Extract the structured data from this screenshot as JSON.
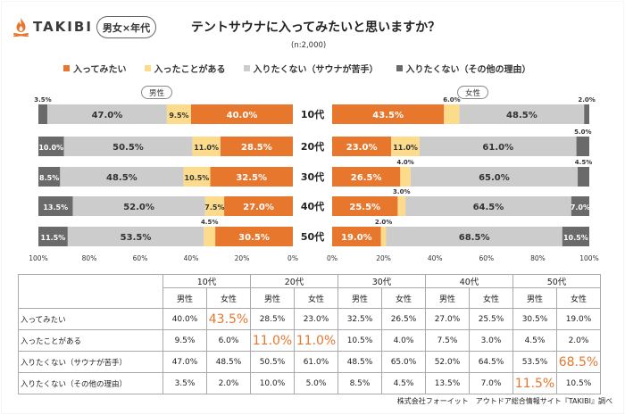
{
  "header": {
    "logo_text": "TAKIBI",
    "tag": "男女×年代",
    "title": "テントサウナに入ってみたいと思いますか？",
    "n_note": "(n:2,000)"
  },
  "colors": {
    "want": "#e8772e",
    "have": "#fcdc8c",
    "no_dislike": "#cccccc",
    "no_other": "#6a6a6a",
    "highlight": "#e8772e",
    "logo_flame": "#e8772e"
  },
  "chart_data": {
    "type": "bar",
    "orientation": "horizontal",
    "stacked": true,
    "legend": [
      "入ってみたい",
      "入ったことがある",
      "入りたくない（サウナが苦手）",
      "入りたくない（その他の理由）"
    ],
    "legend_position": "top",
    "categories": [
      "10代",
      "20代",
      "30代",
      "40代",
      "50代"
    ],
    "panels": [
      {
        "name": "男性",
        "direction": "right-to-left",
        "xlim": [
          0,
          100
        ],
        "ticks": [
          "100%",
          "80%",
          "60%",
          "40%",
          "20%",
          "0%"
        ],
        "series": [
          {
            "name": "入ってみたい",
            "values": [
              40.0,
              28.5,
              32.5,
              27.0,
              30.5
            ]
          },
          {
            "name": "入ったことがある",
            "values": [
              9.5,
              11.0,
              10.5,
              7.5,
              4.5
            ]
          },
          {
            "name": "入りたくない（サウナが苦手）",
            "values": [
              47.0,
              50.5,
              48.5,
              52.0,
              53.5
            ]
          },
          {
            "name": "入りたくない（その他の理由）",
            "values": [
              3.5,
              10.0,
              8.5,
              13.5,
              11.5
            ]
          }
        ],
        "labels": [
          [
            "40.0%",
            "9.5%",
            "47.0%",
            "3.5%"
          ],
          [
            "28.5%",
            "11.0%",
            "50.5%",
            "10.0%"
          ],
          [
            "32.5%",
            "10.5%",
            "48.5%",
            "8.5%"
          ],
          [
            "27.0%",
            "7.5%",
            "52.0%",
            "13.5%"
          ],
          [
            "30.5%",
            "4.5%",
            "53.5%",
            "11.5%"
          ]
        ]
      },
      {
        "name": "女性",
        "direction": "left-to-right",
        "xlim": [
          0,
          100
        ],
        "ticks": [
          "0%",
          "20%",
          "40%",
          "60%",
          "80%",
          "100%"
        ],
        "series": [
          {
            "name": "入ってみたい",
            "values": [
              43.5,
              23.0,
              26.5,
              25.5,
              19.0
            ]
          },
          {
            "name": "入ったことがある",
            "values": [
              6.0,
              11.0,
              4.0,
              3.0,
              2.0
            ]
          },
          {
            "name": "入りたくない（サウナが苦手）",
            "values": [
              48.5,
              61.0,
              65.0,
              64.5,
              68.5
            ]
          },
          {
            "name": "入りたくない（その他の理由）",
            "values": [
              2.0,
              5.0,
              4.5,
              7.0,
              10.5
            ]
          }
        ],
        "labels": [
          [
            "43.5%",
            "6.0%",
            "48.5%",
            "2.0%"
          ],
          [
            "23.0%",
            "11.0%",
            "61.0%",
            "5.0%"
          ],
          [
            "26.5%",
            "4.0%",
            "65.0%",
            "4.5%"
          ],
          [
            "25.5%",
            "3.0%",
            "64.5%",
            "7.0%"
          ],
          [
            "19.0%",
            "2.0%",
            "68.5%",
            "10.5%"
          ]
        ]
      }
    ]
  },
  "table": {
    "age_groups": [
      "10代",
      "20代",
      "30代",
      "40代",
      "50代"
    ],
    "sub_headers": [
      "男性",
      "女性"
    ],
    "rows": [
      {
        "label": "入ってみたい",
        "values": [
          "40.0%",
          "43.5%",
          "28.5%",
          "23.0%",
          "32.5%",
          "26.5%",
          "27.0%",
          "25.5%",
          "30.5%",
          "19.0%"
        ],
        "highlight": [
          1
        ]
      },
      {
        "label": "入ったことがある",
        "values": [
          "9.5%",
          "6.0%",
          "11.0%",
          "11.0%",
          "10.5%",
          "4.0%",
          "7.5%",
          "3.0%",
          "4.5%",
          "2.0%"
        ],
        "highlight": [
          2,
          3
        ]
      },
      {
        "label": "入りたくない（サウナが苦手）",
        "values": [
          "47.0%",
          "48.5%",
          "50.5%",
          "61.0%",
          "48.5%",
          "65.0%",
          "52.0%",
          "64.5%",
          "53.5%",
          "68.5%"
        ],
        "highlight": [
          9
        ]
      },
      {
        "label": "入りたくない（その他の理由）",
        "values": [
          "3.5%",
          "2.0%",
          "10.0%",
          "5.0%",
          "8.5%",
          "4.5%",
          "13.5%",
          "7.0%",
          "11.5%",
          "10.5%"
        ],
        "highlight": [
          8
        ]
      }
    ]
  },
  "source": "株式会社フォーイット　アウトドア総合情報サイト『TAKIBI』調べ"
}
